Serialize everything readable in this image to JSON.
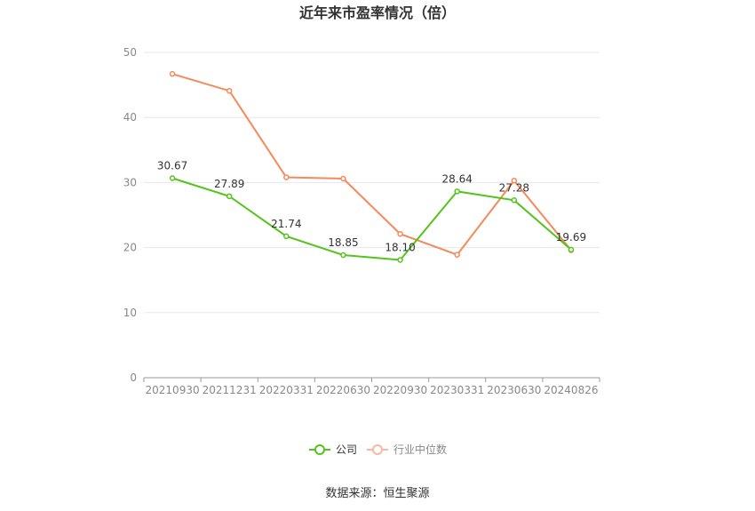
{
  "chart_data": {
    "type": "line",
    "title": "近年来市盈率情况（倍）",
    "categories": [
      "20210930",
      "20211231",
      "20220331",
      "20220630",
      "20220930",
      "20230331",
      "20230630",
      "20240826"
    ],
    "ylim": [
      0,
      50
    ],
    "yticks": [
      "0",
      "10",
      "20",
      "30",
      "40",
      "50"
    ],
    "grid": true,
    "legend_position": "bottom",
    "series": [
      {
        "name": "公司",
        "color": "#52c41a",
        "values": [
          30.67,
          27.89,
          21.74,
          18.85,
          18.1,
          28.64,
          27.28,
          19.69
        ],
        "labels": [
          "30.67",
          "27.89",
          "21.74",
          "18.85",
          "18.10",
          "28.64",
          "27.28",
          "19.69"
        ]
      },
      {
        "name": "行业中位数",
        "color": "#f5895a",
        "values": [
          46.7,
          44.1,
          30.8,
          30.6,
          22.1,
          18.9,
          30.3,
          19.6
        ]
      }
    ],
    "source": "数据来源：恒生聚源"
  }
}
